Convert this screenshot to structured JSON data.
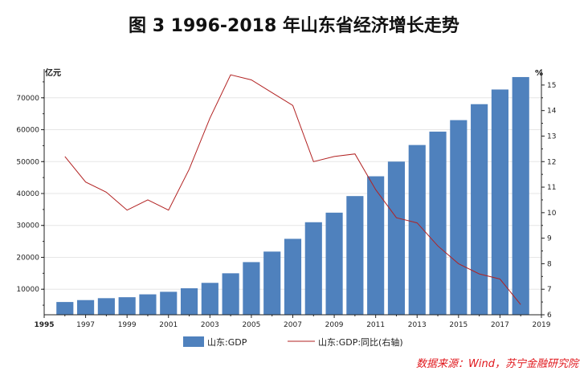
{
  "chart_data": {
    "type": "bar",
    "title": "图 3 1996-2018 年山东省经济增长走势",
    "y_left_label": "亿元",
    "y_right_label": "%",
    "ylim_left": [
      2000,
      78000
    ],
    "ylim_right": [
      6.0,
      15.5
    ],
    "xlim": [
      1995,
      2019
    ],
    "x_ticks": [
      "1995",
      "1997",
      "1999",
      "2001",
      "2003",
      "2005",
      "2007",
      "2009",
      "2011",
      "2013",
      "2015",
      "2017",
      "2019"
    ],
    "y_left_ticks": [
      "10000",
      "20000",
      "30000",
      "40000",
      "50000",
      "60000",
      "70000"
    ],
    "y_right_ticks": [
      "6",
      "7",
      "8",
      "9",
      "10",
      "11",
      "12",
      "13",
      "14",
      "15"
    ],
    "years": [
      1996,
      1997,
      1998,
      1999,
      2000,
      2001,
      2002,
      2003,
      2004,
      2005,
      2006,
      2007,
      2008,
      2009,
      2010,
      2011,
      2012,
      2013,
      2014,
      2015,
      2016,
      2017,
      2018
    ],
    "series": [
      {
        "name": "山东:GDP",
        "type": "bar",
        "axis": "left",
        "values": [
          6000,
          6600,
          7200,
          7500,
          8400,
          9200,
          10300,
          12000,
          15000,
          18500,
          21800,
          25800,
          31000,
          34000,
          39200,
          45400,
          50000,
          55200,
          59400,
          63000,
          68000,
          72600,
          76500
        ]
      },
      {
        "name": "山东:GDP:同比(右轴)",
        "type": "line",
        "axis": "right",
        "values": [
          12.2,
          11.2,
          10.8,
          10.1,
          10.5,
          10.1,
          11.7,
          13.7,
          15.4,
          15.2,
          14.7,
          14.2,
          12.0,
          12.2,
          12.3,
          10.9,
          9.8,
          9.6,
          8.7,
          8.0,
          7.6,
          7.4,
          6.4
        ]
      }
    ],
    "colors": {
      "bar": "#4f81bd",
      "line": "#b22222",
      "grid": "#e6e6e6",
      "axis": "#222222"
    }
  },
  "legend": {
    "bar_label": "山东:GDP",
    "line_label": "山东:GDP:同比(右轴)"
  },
  "source": "数据来源：Wind，苏宁金融研究院"
}
